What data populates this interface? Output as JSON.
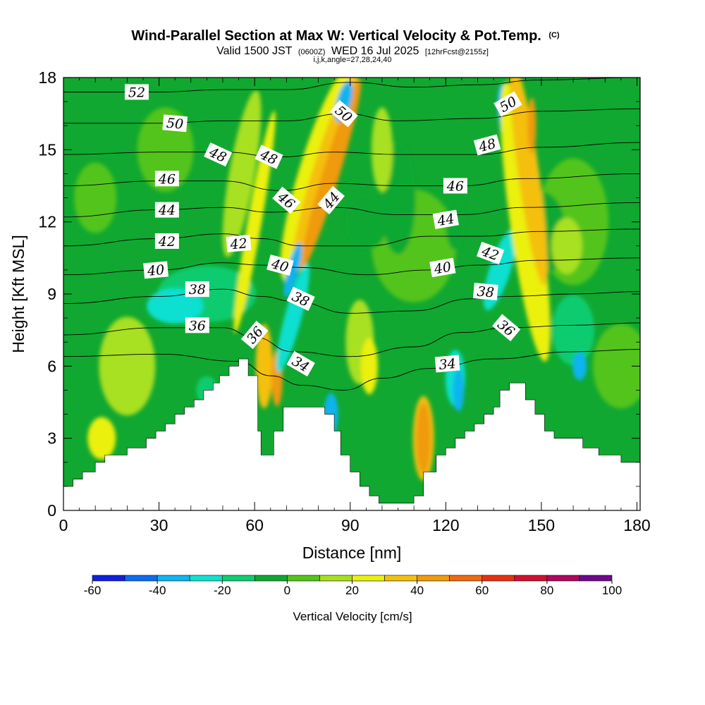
{
  "title": {
    "main": "Wind-Parallel Section at Max W: Vertical Velocity & Pot.Temp.",
    "main_suffix": "(C)",
    "valid_prefix": "Valid 1500 JST",
    "valid_utc": "(0600Z)",
    "valid_date": "WED 16 Jul 2025",
    "forecast": "[12hrFcst@2155z]",
    "ijk": "i,j,k,angle=27,28,24,40"
  },
  "chart_data": {
    "type": "heatmap",
    "xlabel": "Distance [nm]",
    "ylabel": "Height [Kft MSL]",
    "xlim": [
      0,
      181
    ],
    "ylim": [
      0,
      18
    ],
    "xticks": [
      "0",
      "30",
      "60",
      "90",
      "120",
      "150",
      "180"
    ],
    "yticks": [
      "0",
      "3",
      "6",
      "9",
      "12",
      "15",
      "18"
    ],
    "colorbar": {
      "label": "Vertical Velocity [cm/s]",
      "tick_labels": [
        "-60",
        "-40",
        "-20",
        "0",
        "20",
        "40",
        "60",
        "80",
        "100"
      ],
      "levels": [
        -60,
        -50,
        -40,
        -30,
        -20,
        -10,
        0,
        10,
        20,
        30,
        40,
        50,
        60,
        70,
        80,
        90,
        100
      ],
      "colors": [
        "#1020e0",
        "#0d6cf0",
        "#10b4f0",
        "#10e0d0",
        "#10cc70",
        "#10a830",
        "#52c41a",
        "#a8e020",
        "#ecf010",
        "#f4c010",
        "#f09a10",
        "#f06a10",
        "#ea3010",
        "#d01030",
        "#b00860",
        "#700890"
      ]
    },
    "terrain": [
      [
        0,
        1.0
      ],
      [
        3,
        1.0
      ],
      [
        3,
        1.3
      ],
      [
        6,
        1.3
      ],
      [
        6,
        1.6
      ],
      [
        10,
        1.6
      ],
      [
        10,
        2.0
      ],
      [
        13,
        2.0
      ],
      [
        13,
        2.3
      ],
      [
        20,
        2.3
      ],
      [
        20,
        2.6
      ],
      [
        26,
        2.6
      ],
      [
        26,
        3.0
      ],
      [
        29,
        3.0
      ],
      [
        29,
        3.3
      ],
      [
        32,
        3.3
      ],
      [
        32,
        3.6
      ],
      [
        35,
        3.6
      ],
      [
        35,
        4.0
      ],
      [
        38,
        4.0
      ],
      [
        38,
        4.3
      ],
      [
        41,
        4.3
      ],
      [
        41,
        4.6
      ],
      [
        44,
        4.6
      ],
      [
        44,
        5.0
      ],
      [
        47,
        5.0
      ],
      [
        47,
        5.3
      ],
      [
        49,
        5.3
      ],
      [
        49,
        5.6
      ],
      [
        52,
        5.6
      ],
      [
        52,
        6.0
      ],
      [
        55,
        6.0
      ],
      [
        55,
        6.3
      ],
      [
        58,
        6.3
      ],
      [
        58,
        5.6
      ],
      [
        61,
        5.6
      ],
      [
        61,
        3.3
      ],
      [
        62,
        3.3
      ],
      [
        62,
        2.3
      ],
      [
        66,
        2.3
      ],
      [
        66,
        3.3
      ],
      [
        69,
        3.3
      ],
      [
        69,
        4.3
      ],
      [
        82,
        4.3
      ],
      [
        82,
        4.0
      ],
      [
        85,
        4.0
      ],
      [
        85,
        3.3
      ],
      [
        87,
        3.3
      ],
      [
        87,
        2.3
      ],
      [
        90,
        2.3
      ],
      [
        90,
        1.6
      ],
      [
        93,
        1.6
      ],
      [
        93,
        1.0
      ],
      [
        96,
        1.0
      ],
      [
        96,
        0.6
      ],
      [
        99,
        0.6
      ],
      [
        99,
        0.3
      ],
      [
        110,
        0.3
      ],
      [
        110,
        0.6
      ],
      [
        113,
        0.6
      ],
      [
        113,
        1.6
      ],
      [
        117,
        1.6
      ],
      [
        117,
        2.3
      ],
      [
        120,
        2.3
      ],
      [
        120,
        2.6
      ],
      [
        123,
        2.6
      ],
      [
        123,
        3.0
      ],
      [
        126,
        3.0
      ],
      [
        126,
        3.3
      ],
      [
        129,
        3.3
      ],
      [
        129,
        3.6
      ],
      [
        132,
        3.6
      ],
      [
        132,
        4.0
      ],
      [
        135,
        4.0
      ],
      [
        135,
        4.3
      ],
      [
        137,
        4.3
      ],
      [
        137,
        5.0
      ],
      [
        140,
        5.0
      ],
      [
        140,
        5.3
      ],
      [
        145,
        5.3
      ],
      [
        145,
        4.6
      ],
      [
        148,
        4.6
      ],
      [
        148,
        4.0
      ],
      [
        151,
        4.0
      ],
      [
        151,
        3.3
      ],
      [
        154,
        3.3
      ],
      [
        154,
        3.0
      ],
      [
        163,
        3.0
      ],
      [
        163,
        2.6
      ],
      [
        168,
        2.6
      ],
      [
        168,
        2.3
      ],
      [
        175,
        2.3
      ],
      [
        175,
        2.0
      ],
      [
        181,
        2.0
      ]
    ],
    "theta_contours": [
      {
        "label": "34",
        "pts": [
          [
            0,
            6.4
          ],
          [
            30,
            6.5
          ],
          [
            55,
            6.2
          ],
          [
            65,
            5.6
          ],
          [
            75,
            5.2
          ],
          [
            88,
            5.0
          ],
          [
            100,
            5.5
          ],
          [
            115,
            5.9
          ],
          [
            135,
            6.3
          ],
          [
            160,
            6.6
          ],
          [
            181,
            6.7
          ]
        ]
      },
      {
        "label": "36",
        "pts": [
          [
            0,
            7.3
          ],
          [
            30,
            7.6
          ],
          [
            50,
            7.6
          ],
          [
            60,
            7.2
          ],
          [
            72,
            6.6
          ],
          [
            90,
            6.4
          ],
          [
            110,
            6.8
          ],
          [
            125,
            7.4
          ],
          [
            140,
            7.6
          ],
          [
            160,
            7.7
          ],
          [
            181,
            7.8
          ]
        ]
      },
      {
        "label": "38",
        "pts": [
          [
            0,
            8.6
          ],
          [
            30,
            8.9
          ],
          [
            50,
            9.2
          ],
          [
            62,
            8.9
          ],
          [
            72,
            8.7
          ],
          [
            90,
            8.2
          ],
          [
            110,
            8.3
          ],
          [
            128,
            8.8
          ],
          [
            140,
            8.9
          ],
          [
            160,
            9.0
          ],
          [
            181,
            9.1
          ]
        ]
      },
      {
        "label": "40",
        "pts": [
          [
            0,
            9.8
          ],
          [
            30,
            10.0
          ],
          [
            50,
            10.3
          ],
          [
            62,
            10.2
          ],
          [
            75,
            10.1
          ],
          [
            95,
            9.8
          ],
          [
            115,
            10.0
          ],
          [
            130,
            10.2
          ],
          [
            150,
            10.4
          ],
          [
            181,
            10.5
          ]
        ]
      },
      {
        "label": "42",
        "pts": [
          [
            0,
            11.0
          ],
          [
            30,
            11.3
          ],
          [
            50,
            11.5
          ],
          [
            62,
            11.3
          ],
          [
            75,
            11.0
          ],
          [
            95,
            11.0
          ],
          [
            115,
            11.4
          ],
          [
            130,
            11.4
          ],
          [
            150,
            11.6
          ],
          [
            181,
            11.7
          ]
        ]
      },
      {
        "label": "44",
        "pts": [
          [
            0,
            12.2
          ],
          [
            30,
            12.5
          ],
          [
            50,
            12.6
          ],
          [
            65,
            12.4
          ],
          [
            85,
            12.6
          ],
          [
            105,
            12.3
          ],
          [
            125,
            12.3
          ],
          [
            145,
            12.6
          ],
          [
            181,
            12.8
          ]
        ]
      },
      {
        "label": "46",
        "pts": [
          [
            0,
            13.5
          ],
          [
            30,
            13.7
          ],
          [
            50,
            13.7
          ],
          [
            68,
            13.3
          ],
          [
            85,
            13.6
          ],
          [
            105,
            13.5
          ],
          [
            125,
            13.5
          ],
          [
            145,
            13.8
          ],
          [
            181,
            14.0
          ]
        ]
      },
      {
        "label": "48",
        "pts": [
          [
            0,
            14.8
          ],
          [
            30,
            14.9
          ],
          [
            50,
            14.9
          ],
          [
            68,
            14.7
          ],
          [
            85,
            14.9
          ],
          [
            105,
            14.8
          ],
          [
            130,
            14.8
          ],
          [
            150,
            15.1
          ],
          [
            181,
            15.3
          ]
        ]
      },
      {
        "label": "50",
        "pts": [
          [
            0,
            16.1
          ],
          [
            30,
            16.1
          ],
          [
            50,
            16.2
          ],
          [
            70,
            16.2
          ],
          [
            88,
            16.5
          ],
          [
            105,
            16.2
          ],
          [
            130,
            16.3
          ],
          [
            150,
            16.6
          ],
          [
            181,
            16.7
          ]
        ]
      },
      {
        "label": "52",
        "pts": [
          [
            0,
            17.4
          ],
          [
            30,
            17.4
          ],
          [
            50,
            17.5
          ],
          [
            70,
            17.5
          ],
          [
            90,
            17.8
          ],
          [
            110,
            17.6
          ],
          [
            130,
            17.7
          ],
          [
            150,
            17.9
          ],
          [
            181,
            18.0
          ]
        ]
      }
    ],
    "contour_labels": [
      {
        "text": "52",
        "x": 23,
        "y": 17.4,
        "rot": 0
      },
      {
        "text": "50",
        "x": 35,
        "y": 16.1,
        "rot": 5
      },
      {
        "text": "48",
        "x": 48.5,
        "y": 14.8,
        "rot": 25
      },
      {
        "text": "46",
        "x": 32.5,
        "y": 13.8,
        "rot": 0
      },
      {
        "text": "44",
        "x": 32.5,
        "y": 12.5,
        "rot": 0
      },
      {
        "text": "42",
        "x": 32.5,
        "y": 11.2,
        "rot": 0
      },
      {
        "text": "40",
        "x": 29,
        "y": 10.0,
        "rot": -5
      },
      {
        "text": "38",
        "x": 42,
        "y": 9.2,
        "rot": 0
      },
      {
        "text": "36",
        "x": 42,
        "y": 7.7,
        "rot": 0
      },
      {
        "text": "48",
        "x": 64.5,
        "y": 14.7,
        "rot": 25
      },
      {
        "text": "42",
        "x": 55,
        "y": 11.1,
        "rot": -5
      },
      {
        "text": "46",
        "x": 70,
        "y": 12.9,
        "rot": 40
      },
      {
        "text": "40",
        "x": 68,
        "y": 10.2,
        "rot": 15
      },
      {
        "text": "38",
        "x": 74.5,
        "y": 8.8,
        "rot": 25
      },
      {
        "text": "36",
        "x": 60,
        "y": 7.3,
        "rot": -50
      },
      {
        "text": "34",
        "x": 74.5,
        "y": 6.1,
        "rot": 30
      },
      {
        "text": "50",
        "x": 88,
        "y": 16.5,
        "rot": 40
      },
      {
        "text": "44",
        "x": 84,
        "y": 12.9,
        "rot": -50
      },
      {
        "text": "46",
        "x": 123,
        "y": 13.5,
        "rot": 0
      },
      {
        "text": "44",
        "x": 120,
        "y": 12.1,
        "rot": -10
      },
      {
        "text": "40",
        "x": 119,
        "y": 10.1,
        "rot": -10
      },
      {
        "text": "34",
        "x": 120.5,
        "y": 6.1,
        "rot": -5
      },
      {
        "text": "48",
        "x": 133,
        "y": 15.2,
        "rot": -15
      },
      {
        "text": "42",
        "x": 134,
        "y": 10.7,
        "rot": 20
      },
      {
        "text": "38",
        "x": 132.5,
        "y": 9.1,
        "rot": 5
      },
      {
        "text": "36",
        "x": 139,
        "y": 7.6,
        "rot": 40
      },
      {
        "text": "50",
        "x": 139.5,
        "y": 16.9,
        "rot": -30
      }
    ]
  }
}
